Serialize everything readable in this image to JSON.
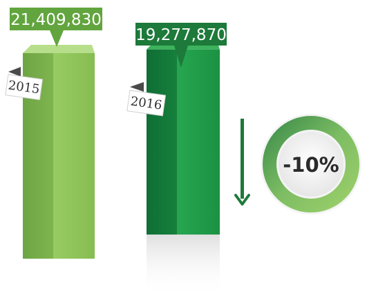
{
  "chart_data": {
    "type": "bar",
    "categories": [
      "2015",
      "2016"
    ],
    "values": [
      21409830,
      19277870
    ],
    "value_labels": [
      "21,409,830",
      "19,277,870"
    ],
    "title": "",
    "xlabel": "",
    "ylabel": "",
    "change_label": "-10%",
    "change_direction": "down",
    "grid": false,
    "colors": {
      "bar_2015": "#8fc45a",
      "bar_2016": "#1e9a48",
      "label_2015": "#62a53e",
      "label_2016": "#1d7a3a",
      "arrow": "#1d7a3a",
      "ring": "#5aa860"
    }
  }
}
